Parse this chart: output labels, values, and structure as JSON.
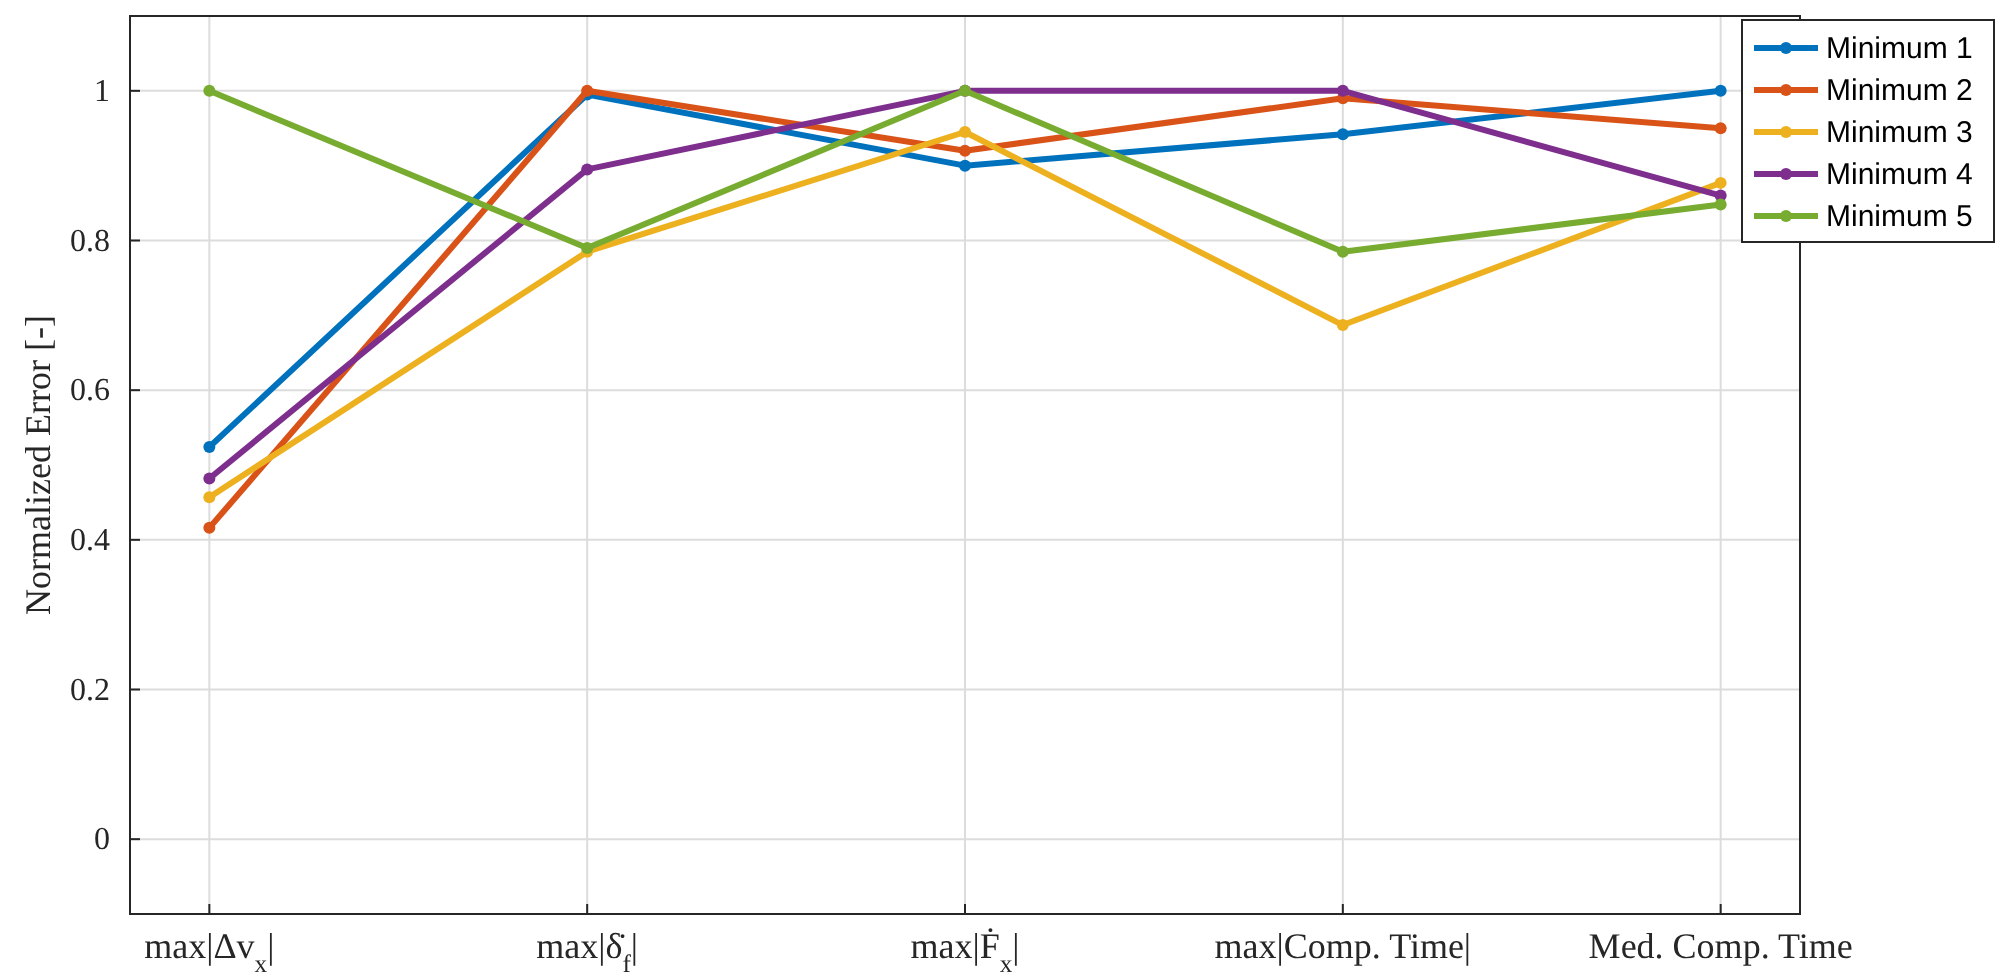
{
  "chart_data": {
    "type": "line",
    "ylabel": "Normalized Error [-]",
    "categories": [
      "max|Δv$_{x}$|",
      "max|δ̇$_{f}$|",
      "max|Ḟ$_{x}$|",
      "max|Comp. Time|",
      "Med. Comp. Time"
    ],
    "ylim": [
      -0.1,
      1.1
    ],
    "yticks": [
      0,
      0.2,
      0.4,
      0.6,
      0.8,
      1
    ],
    "grid": true,
    "legend": "top right",
    "marker": "circle",
    "line_style": "solid",
    "series": [
      {
        "name": "Minimum 1",
        "color": "#0072bd",
        "values": [
          0.524,
          0.995,
          0.9,
          0.942,
          1.0
        ]
      },
      {
        "name": "Minimum 2",
        "color": "#d95319",
        "values": [
          0.416,
          1.0,
          0.92,
          0.99,
          0.95
        ]
      },
      {
        "name": "Minimum 3",
        "color": "#edb120",
        "values": [
          0.457,
          0.785,
          0.945,
          0.687,
          0.877
        ]
      },
      {
        "name": "Minimum 4",
        "color": "#7e2f8e",
        "values": [
          0.482,
          0.895,
          1.0,
          1.0,
          0.86
        ]
      },
      {
        "name": "Minimum 5",
        "color": "#77ac30",
        "values": [
          1.0,
          0.79,
          1.0,
          0.785,
          0.848
        ]
      }
    ]
  }
}
